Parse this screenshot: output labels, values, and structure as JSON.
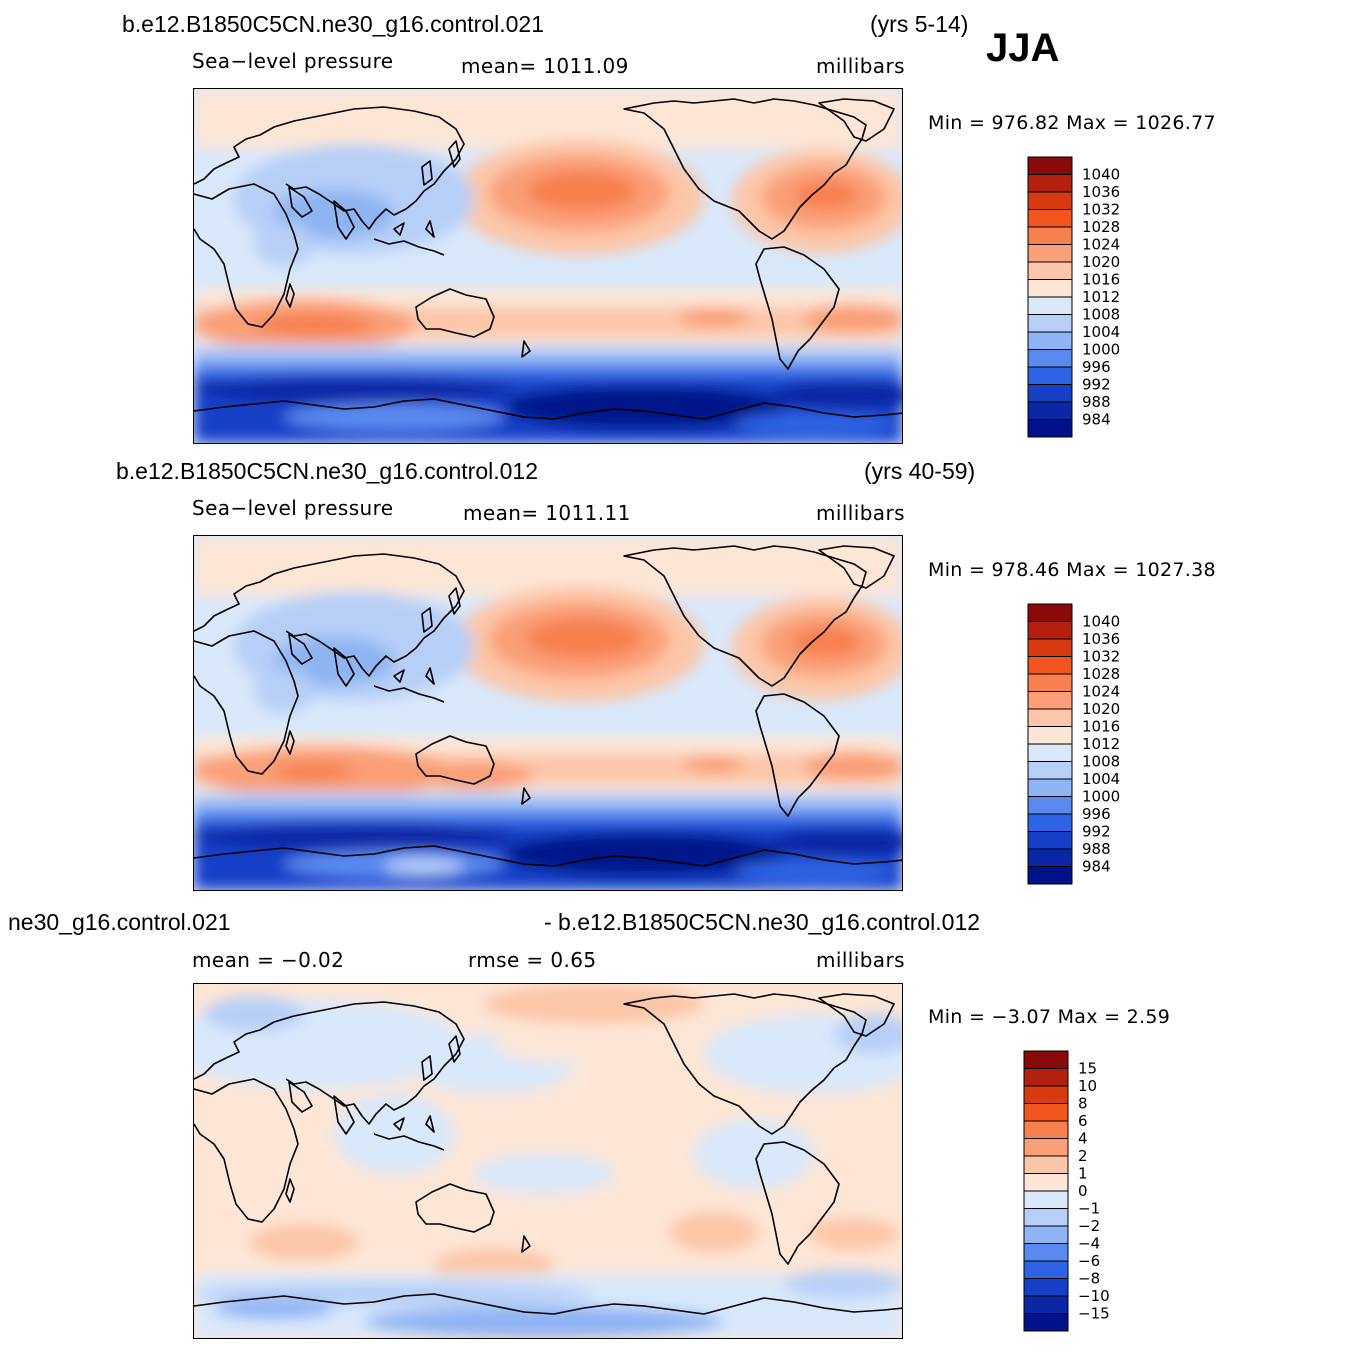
{
  "season": "JJA",
  "panels": [
    {
      "case": "b.e12.B1850C5CN.ne30_g16.control.021",
      "years": "(yrs 5-14)",
      "variable": "Sea−level pressure",
      "mean": "mean=  1011.09",
      "units": "millibars",
      "minmax": "Min  =  976.82  Max  =  1026.77"
    },
    {
      "case": "b.e12.B1850C5CN.ne30_g16.control.012",
      "years": "(yrs 40-59)",
      "variable": "Sea−level pressure",
      "mean": "mean=  1011.11",
      "units": "millibars",
      "minmax": "Min  =  978.46  Max  =  1027.38"
    },
    {
      "case_left": "ne30_g16.control.021",
      "case_right": "- b.e12.B1850C5CN.ne30_g16.control.012",
      "mean": "mean  =    −0.02",
      "rmse": "rmse  =     0.65",
      "units": "millibars",
      "minmax": "Min  =    −3.07  Max  =      2.59"
    }
  ],
  "colorbar_abs": {
    "labels": [
      "1040",
      "1036",
      "1032",
      "1028",
      "1024",
      "1020",
      "1016",
      "1012",
      "1008",
      "1004",
      "1000",
      "996",
      "992",
      "988",
      "984"
    ],
    "colors": [
      "#8a0a0a",
      "#b3200e",
      "#d83a12",
      "#f2551e",
      "#f7804f",
      "#fa9f77",
      "#fcc6a8",
      "#fde6d6",
      "#d9e8fb",
      "#b7cff7",
      "#8fb4f3",
      "#5a8af0",
      "#2d63e4",
      "#1640c8",
      "#0a27a6",
      "#00128a"
    ]
  },
  "colorbar_diff": {
    "labels": [
      "15",
      "10",
      "8",
      "6",
      "4",
      "2",
      "1",
      "0",
      "−1",
      "−2",
      "−4",
      "−6",
      "−8",
      "−10",
      "−15"
    ],
    "colors": [
      "#8a0a0a",
      "#b3200e",
      "#d83a12",
      "#f2551e",
      "#f7804f",
      "#fa9f77",
      "#fcc6a8",
      "#fde6d6",
      "#d9e8fb",
      "#b7cff7",
      "#8fb4f3",
      "#5a8af0",
      "#2d63e4",
      "#1640c8",
      "#0a27a6",
      "#00128a"
    ]
  }
}
